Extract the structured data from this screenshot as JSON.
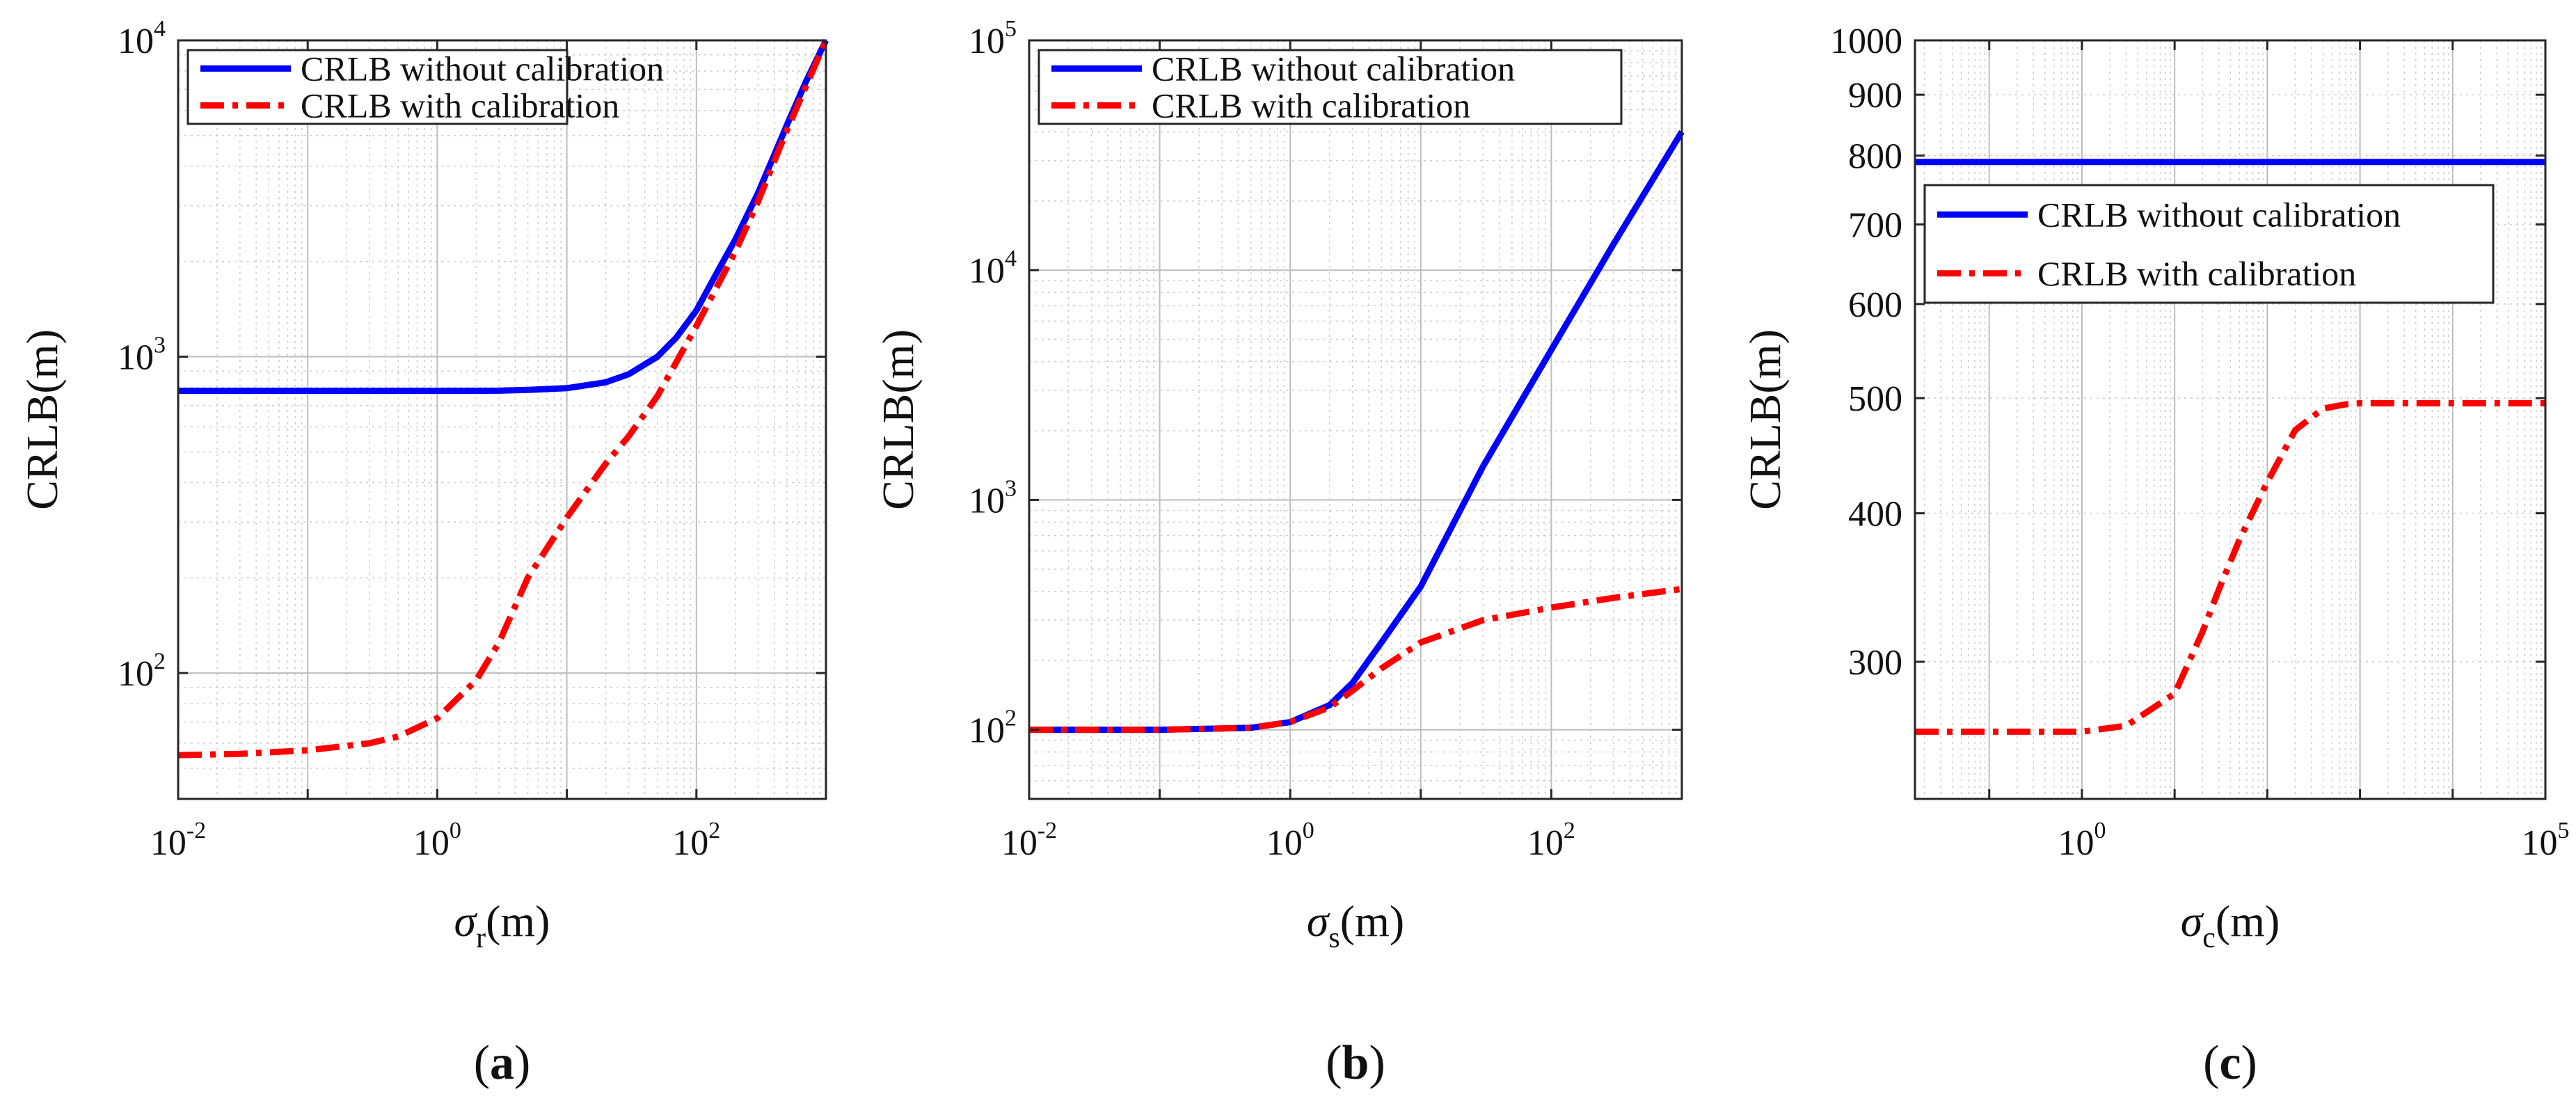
{
  "chart_data": [
    {
      "type": "line",
      "panel": "a",
      "caption": {
        "open": "(",
        "letter": "a",
        "close": ")"
      },
      "xscale": "log",
      "yscale": "log",
      "xlim": [
        0.01,
        1000
      ],
      "ylim": [
        40,
        10000
      ],
      "xlabel": {
        "symbol": "σ",
        "sub": "r",
        "unit": "(m)"
      },
      "ylabel": "CRLB(m)",
      "xticks": [
        {
          "base": "10",
          "exp": "-2"
        },
        {
          "base": "10",
          "exp": "0"
        },
        {
          "base": "10",
          "exp": "2"
        }
      ],
      "yticks": [
        {
          "base": "10",
          "exp": "2"
        },
        {
          "base": "10",
          "exp": "3"
        },
        {
          "base": "10",
          "exp": "4"
        }
      ],
      "grid": true,
      "legend_position": "top-left",
      "series": [
        {
          "name": "CRLB without calibration",
          "color": "#0000ff",
          "style": "solid",
          "x": [
            0.01,
            0.1,
            1,
            3,
            5,
            10,
            20,
            30,
            50,
            70,
            100,
            150,
            200,
            300,
            500,
            700,
            1000
          ],
          "y": [
            780,
            780,
            780,
            781,
            785,
            795,
            830,
            880,
            1000,
            1150,
            1400,
            1900,
            2350,
            3300,
            5400,
            7400,
            10000
          ]
        },
        {
          "name": "CRLB with calibration",
          "color": "#ff0000",
          "style": "dashdot",
          "x": [
            0.01,
            0.03,
            0.1,
            0.3,
            0.5,
            1,
            2,
            3,
            5,
            10,
            20,
            30,
            50,
            100,
            200,
            300,
            500,
            1000
          ],
          "y": [
            55,
            55.5,
            57,
            60,
            63,
            72,
            95,
            125,
            200,
            310,
            460,
            560,
            750,
            1250,
            2150,
            3100,
            5200,
            10000
          ]
        }
      ]
    },
    {
      "type": "line",
      "panel": "b",
      "caption": {
        "open": "(",
        "letter": "b",
        "close": ")"
      },
      "xscale": "log",
      "yscale": "log",
      "xlim": [
        0.01,
        1000
      ],
      "ylim": [
        50,
        100000
      ],
      "xlabel": {
        "symbol": "σ",
        "sub": "s",
        "unit": "(m)"
      },
      "ylabel": "CRLB(m)",
      "xticks": [
        {
          "base": "10",
          "exp": "-2"
        },
        {
          "base": "10",
          "exp": "0"
        },
        {
          "base": "10",
          "exp": "2"
        }
      ],
      "yticks": [
        {
          "base": "10",
          "exp": "2"
        },
        {
          "base": "10",
          "exp": "3"
        },
        {
          "base": "10",
          "exp": "4"
        },
        {
          "base": "10",
          "exp": "5"
        }
      ],
      "grid": true,
      "legend_position": "top-left",
      "series": [
        {
          "name": "CRLB without calibration",
          "color": "#0000ff",
          "style": "solid",
          "x": [
            0.01,
            0.1,
            0.5,
            1,
            2,
            3,
            5,
            10,
            30,
            100,
            300,
            1000
          ],
          "y": [
            100,
            100,
            102,
            108,
            128,
            160,
            240,
            420,
            1400,
            4500,
            13000,
            40000
          ]
        },
        {
          "name": "CRLB with calibration",
          "color": "#ff0000",
          "style": "dashdot",
          "x": [
            0.01,
            0.1,
            0.5,
            1,
            2,
            3,
            5,
            10,
            30,
            100,
            300,
            1000
          ],
          "y": [
            100,
            100,
            102,
            108,
            125,
            148,
            185,
            240,
            300,
            340,
            375,
            410
          ]
        }
      ]
    },
    {
      "type": "line",
      "panel": "c",
      "caption": {
        "open": "(",
        "letter": "c",
        "close": ")"
      },
      "xscale": "log",
      "yscale": "log",
      "xlim": [
        0.0158,
        100000
      ],
      "ylim": [
        230,
        1000
      ],
      "xlabel": {
        "symbol": "σ",
        "sub": "c",
        "unit": "(m)"
      },
      "ylabel": "CRLB(m)",
      "xticks": [
        {
          "base": "10",
          "exp": "0"
        },
        {
          "base": "10",
          "exp": "5"
        }
      ],
      "yticks": [
        {
          "label": "300",
          "v": 300
        },
        {
          "label": "400",
          "v": 400
        },
        {
          "label": "500",
          "v": 500
        },
        {
          "label": "600",
          "v": 600
        },
        {
          "label": "700",
          "v": 700
        },
        {
          "label": "800",
          "v": 800
        },
        {
          "label": "900",
          "v": 900
        },
        {
          "label": "1000",
          "v": 1000
        }
      ],
      "grid": true,
      "legend_position": "upper-left",
      "series": [
        {
          "name": "CRLB without calibration",
          "color": "#0000ff",
          "style": "solid",
          "x": [
            0.0158,
            100000
          ],
          "y": [
            790,
            790
          ]
        },
        {
          "name": "CRLB with calibration",
          "color": "#ff0000",
          "style": "dashdot",
          "x": [
            0.0158,
            0.1,
            1,
            3,
            10,
            20,
            30,
            50,
            100,
            200,
            400,
            700,
            1000,
            3000,
            100000
          ],
          "y": [
            262,
            262,
            262,
            265,
            282,
            318,
            345,
            380,
            425,
            470,
            490,
            494,
            495,
            495,
            495
          ]
        }
      ]
    }
  ]
}
